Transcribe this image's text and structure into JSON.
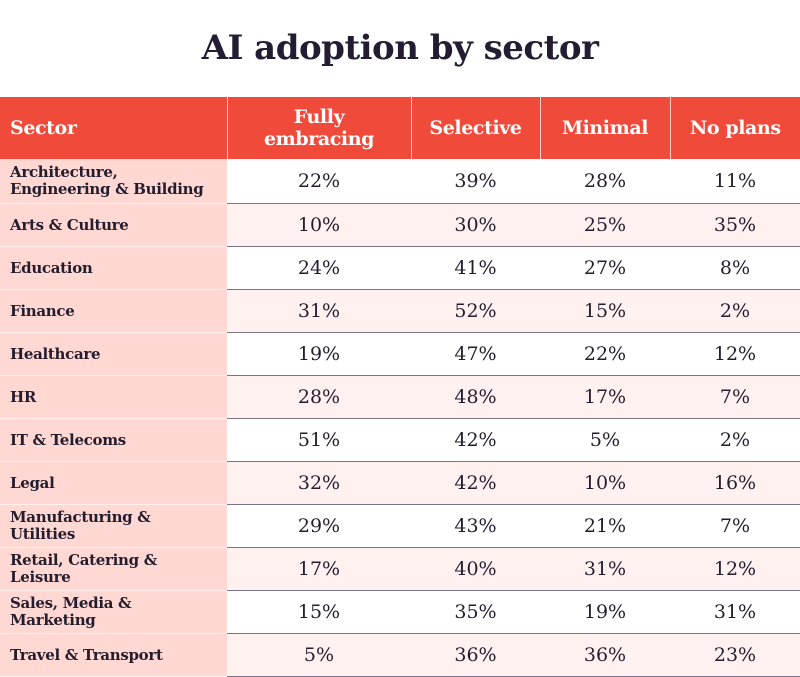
{
  "chart_data": {
    "type": "table",
    "title": "AI adoption by sector",
    "columns": [
      "Sector",
      "Fully embracing",
      "Selective",
      "Minimal",
      "No plans"
    ],
    "rows": [
      {
        "sector": "Architecture, Engineering & Building",
        "values": [
          "22%",
          "39%",
          "28%",
          "11%"
        ]
      },
      {
        "sector": "Arts & Culture",
        "values": [
          "10%",
          "30%",
          "25%",
          "35%"
        ]
      },
      {
        "sector": "Education",
        "values": [
          "24%",
          "41%",
          "27%",
          "8%"
        ]
      },
      {
        "sector": "Finance",
        "values": [
          "31%",
          "52%",
          "15%",
          "2%"
        ]
      },
      {
        "sector": "Healthcare",
        "values": [
          "19%",
          "47%",
          "22%",
          "12%"
        ]
      },
      {
        "sector": "HR",
        "values": [
          "28%",
          "48%",
          "17%",
          "7%"
        ]
      },
      {
        "sector": "IT & Telecoms",
        "values": [
          "51%",
          "42%",
          "5%",
          "2%"
        ]
      },
      {
        "sector": "Legal",
        "values": [
          "32%",
          "42%",
          "10%",
          "16%"
        ]
      },
      {
        "sector": "Manufacturing & Utilities",
        "values": [
          "29%",
          "43%",
          "21%",
          "7%"
        ]
      },
      {
        "sector": "Retail, Catering & Leisure",
        "values": [
          "17%",
          "40%",
          "31%",
          "12%"
        ]
      },
      {
        "sector": "Sales, Media & Marketing",
        "values": [
          "15%",
          "35%",
          "19%",
          "31%"
        ]
      },
      {
        "sector": "Travel & Transport",
        "values": [
          "5%",
          "36%",
          "36%",
          "23%"
        ]
      }
    ]
  },
  "colors": {
    "header_bg": "#f04a3b",
    "sector_bg": "#ffd7d3",
    "stripe_bg": "#fff1f0",
    "title_color": "#241c33"
  }
}
